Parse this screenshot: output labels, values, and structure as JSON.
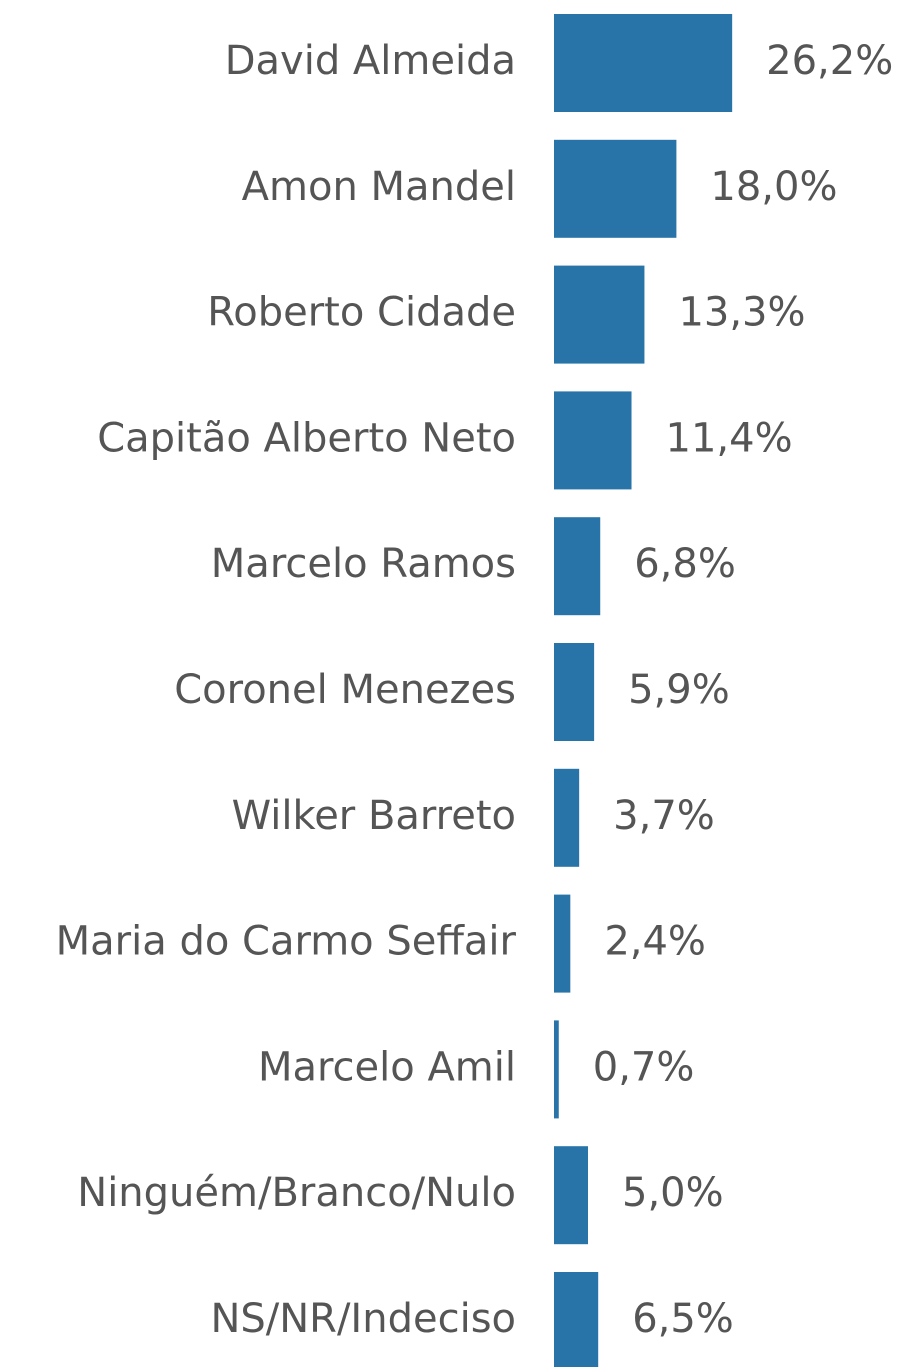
{
  "chart_data": {
    "type": "bar",
    "orientation": "horizontal",
    "color": "#2874a8",
    "categories": [
      "David Almeida",
      "Amon Mandel",
      "Roberto Cidade",
      "Capitão Alberto Neto",
      "Marcelo Ramos",
      "Coronel Menezes",
      "Wilker Barreto",
      "Maria do Carmo Seffair",
      "Marcelo Amil",
      "Ninguém/Branco/Nulo",
      "NS/NR/Indeciso"
    ],
    "values": [
      26.2,
      18.0,
      13.3,
      11.4,
      6.8,
      5.9,
      3.7,
      2.4,
      0.7,
      5.0,
      6.5
    ],
    "value_labels": [
      "26,2%",
      "18,0%",
      "13,3%",
      "11,4%",
      "6,8%",
      "5,9%",
      "3,7%",
      "2,4%",
      "0,7%",
      "5,0%",
      "6,5%"
    ]
  }
}
